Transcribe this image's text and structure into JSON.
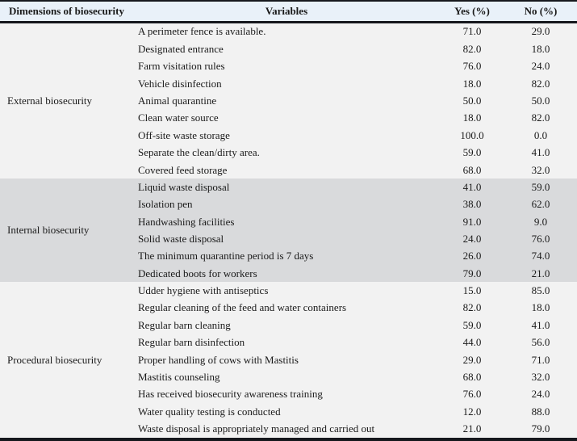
{
  "table": {
    "columns": [
      "Dimensions of biosecurity",
      "Variables",
      "Yes (%)",
      "No (%)"
    ],
    "groups": [
      {
        "dimension": "External biosecurity",
        "shaded": false,
        "rows": [
          {
            "variable": "A perimeter fence is available.",
            "yes": "71.0",
            "no": "29.0"
          },
          {
            "variable": "Designated entrance",
            "yes": "82.0",
            "no": "18.0"
          },
          {
            "variable": "Farm visitation rules",
            "yes": "76.0",
            "no": "24.0"
          },
          {
            "variable": "Vehicle disinfection",
            "yes": "18.0",
            "no": "82.0"
          },
          {
            "variable": "Animal quarantine",
            "yes": "50.0",
            "no": "50.0"
          },
          {
            "variable": "Clean water source",
            "yes": "18.0",
            "no": "82.0"
          },
          {
            "variable": "Off-site waste storage",
            "yes": "100.0",
            "no": "0.0"
          },
          {
            "variable": "Separate the clean/dirty area.",
            "yes": "59.0",
            "no": "41.0"
          },
          {
            "variable": "Covered feed storage",
            "yes": "68.0",
            "no": "32.0"
          }
        ]
      },
      {
        "dimension": "Internal biosecurity",
        "shaded": true,
        "rows": [
          {
            "variable": "Liquid waste disposal",
            "yes": "41.0",
            "no": "59.0"
          },
          {
            "variable": "Isolation pen",
            "yes": "38.0",
            "no": "62.0"
          },
          {
            "variable": "Handwashing facilities",
            "yes": "91.0",
            "no": "9.0"
          },
          {
            "variable": "Solid waste disposal",
            "yes": "24.0",
            "no": "76.0"
          },
          {
            "variable": "The minimum quarantine period is 7 days",
            "yes": "26.0",
            "no": "74.0"
          },
          {
            "variable": "Dedicated boots for workers",
            "yes": "79.0",
            "no": "21.0"
          }
        ]
      },
      {
        "dimension": "Procedural biosecurity",
        "shaded": false,
        "rows": [
          {
            "variable": "Udder hygiene with antiseptics",
            "yes": "15.0",
            "no": "85.0"
          },
          {
            "variable": "Regular cleaning of the feed and water containers",
            "yes": "82.0",
            "no": "18.0"
          },
          {
            "variable": "Regular barn cleaning",
            "yes": "59.0",
            "no": "41.0"
          },
          {
            "variable": "Regular barn disinfection",
            "yes": "44.0",
            "no": "56.0"
          },
          {
            "variable": "Proper handling of cows with Mastitis",
            "yes": "29.0",
            "no": "71.0"
          },
          {
            "variable": "Mastitis counseling",
            "yes": "68.0",
            "no": "32.0"
          },
          {
            "variable": "Has received biosecurity awareness training",
            "yes": "76.0",
            "no": "24.0"
          },
          {
            "variable": "Water quality testing is conducted",
            "yes": "12.0",
            "no": "88.0"
          },
          {
            "variable": "Waste disposal is appropriately managed and carried out",
            "yes": "21.0",
            "no": "79.0"
          }
        ]
      }
    ]
  },
  "colors": {
    "header_bg": "#e9f1f9",
    "shaded_bg": "#d9dadc",
    "row_bg": "#f2f2f2",
    "line": "#16181d"
  }
}
